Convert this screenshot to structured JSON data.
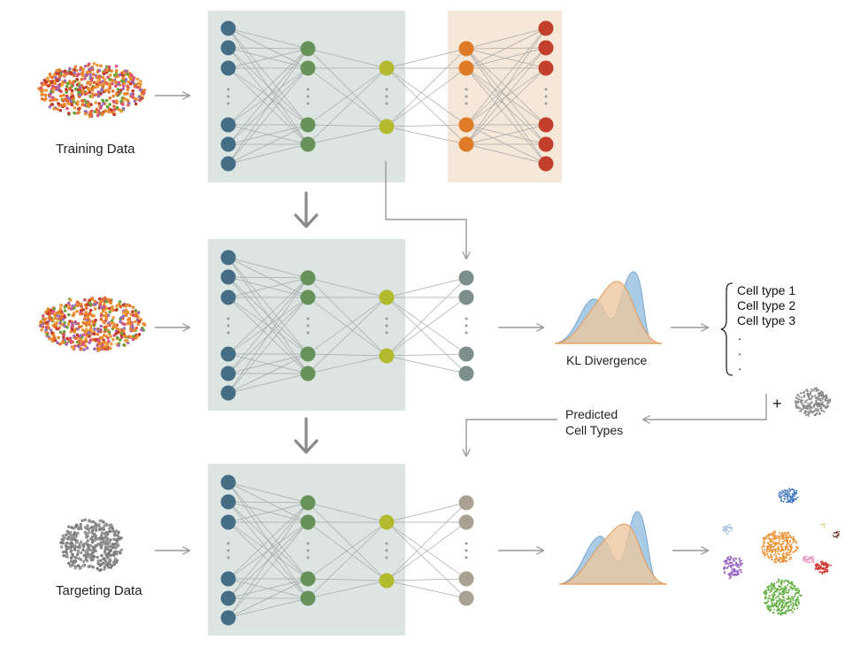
{
  "labels": {
    "training_data": "Training Data",
    "targeting_data": "Targeting Data",
    "kl_divergence": "KL Divergence",
    "predicted_line1": "Predicted",
    "predicted_line2": "Cell Types",
    "plus": "+"
  },
  "cell_types": [
    "Cell type 1",
    "Cell type 2",
    "Cell type 3",
    ".",
    ".",
    "."
  ],
  "colors": {
    "panel_green": "#dce5e1",
    "panel_orange": "#f5e8d9",
    "input_node": "#456e86",
    "hidden_node": "#67935b",
    "latent_node": "#b4ba2d",
    "decoder_node": "#df7a26",
    "output_node": "#c23f2c",
    "classifier_node_row2": "#7c8f8c",
    "classifier_node_row3": "#aaa193",
    "edge": "#a8a8a8",
    "arrow": "#999999",
    "density_blue": "#a9cbe6",
    "density_orange": "#ecc59c",
    "density_overlap": "#c4ab95"
  }
}
